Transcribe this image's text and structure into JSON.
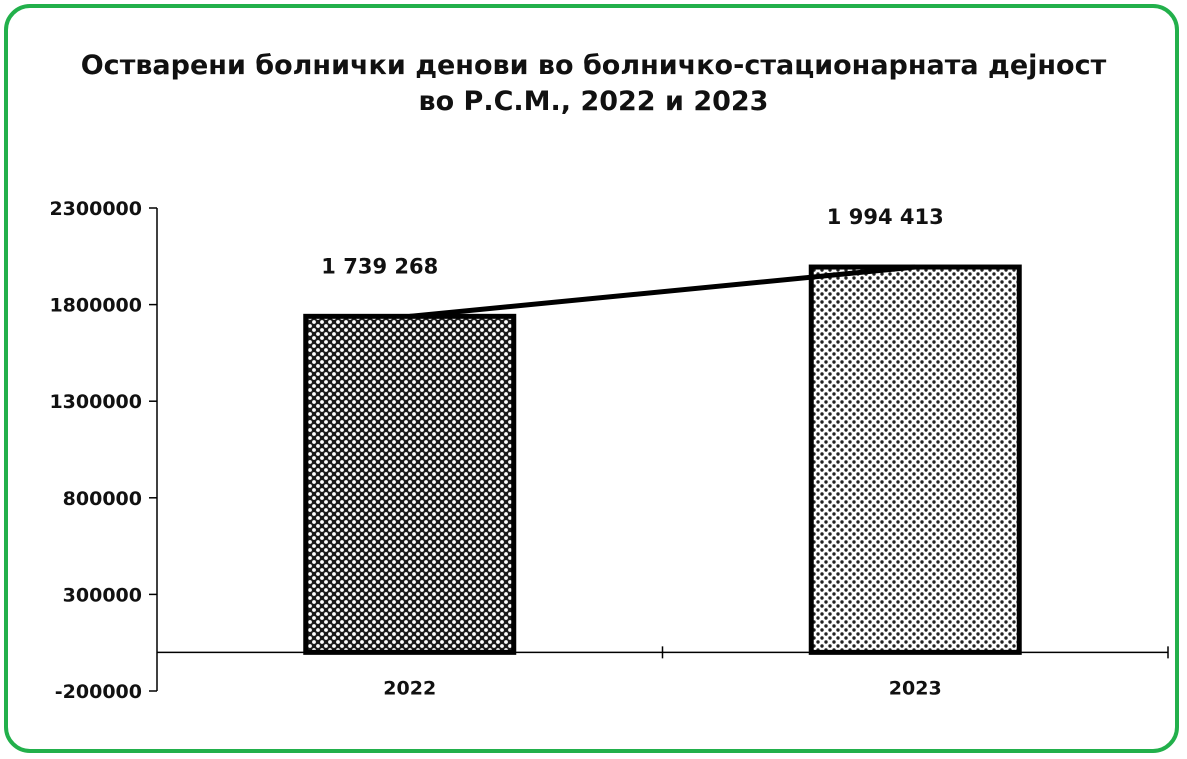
{
  "chart_data": {
    "type": "bar",
    "title_lines": [
      "Остварени болнички денови во болничко-стационарната дејност",
      "во Р.С.М., 2022 и 2023"
    ],
    "categories": [
      "2022",
      "2023"
    ],
    "series": [
      {
        "values": [
          1739268,
          1994413
        ]
      }
    ],
    "data_labels": [
      "1 739 268",
      "1 994 413"
    ],
    "overlay": "line connecting bar tops",
    "yticks": [
      -200000,
      300000,
      800000,
      1300000,
      1800000,
      2300000
    ],
    "ytick_labels": [
      "-200000",
      "300000",
      "800000",
      "1300000",
      "1800000",
      "2300000"
    ],
    "ylim": [
      -200000,
      2300000
    ],
    "xlabel": "",
    "ylabel": "",
    "grid": false,
    "legend": "none",
    "colors": {
      "frame": "#22b04b",
      "bar_pattern": "#000000",
      "axis": "#000000"
    }
  }
}
